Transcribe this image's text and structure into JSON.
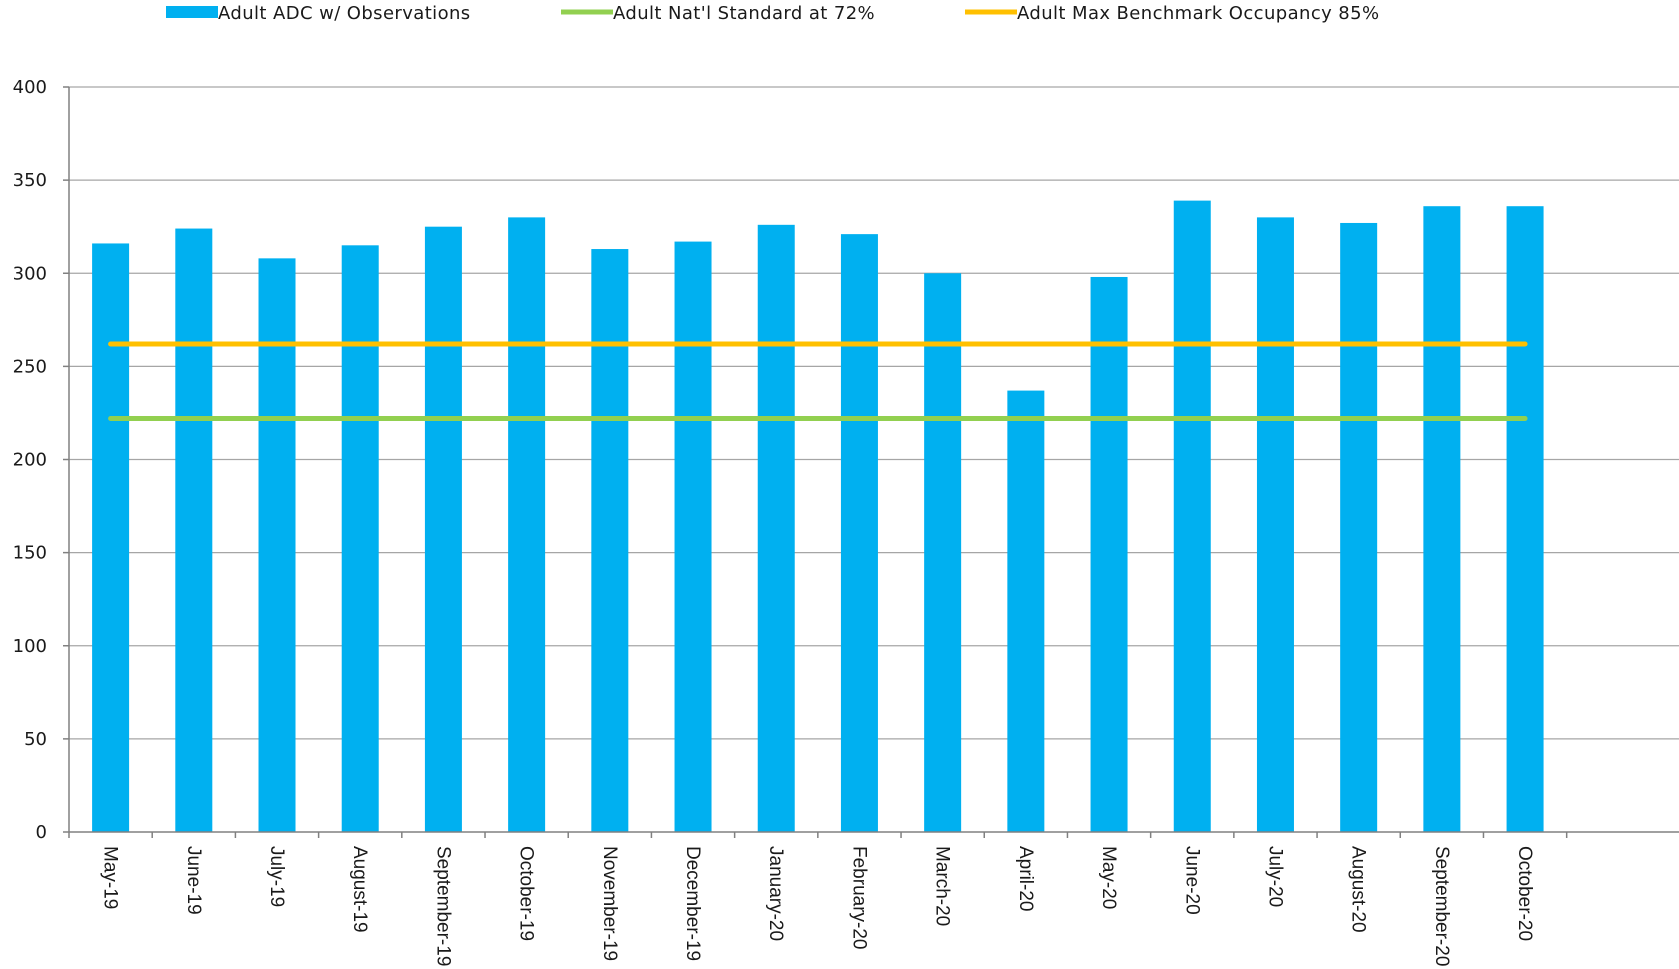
{
  "chart_data": {
    "type": "bar",
    "categories": [
      "May-19",
      "June-19",
      "July-19",
      "August-19",
      "September-19",
      "October-19",
      "November-19",
      "December-19",
      "January-20",
      "February-20",
      "March-20",
      "April-20",
      "May-20",
      "June-20",
      "July-20",
      "August-20",
      "September-20",
      "October-20"
    ],
    "series": [
      {
        "name": "Adult ADC w/ Observations",
        "type": "bar",
        "color": "#00b0f0",
        "values": [
          316,
          324,
          308,
          315,
          325,
          330,
          313,
          317,
          326,
          321,
          300,
          237,
          298,
          339,
          330,
          327,
          336,
          336
        ]
      },
      {
        "name": "Adult Nat'l Standard at 72%",
        "type": "line",
        "color": "#92d050",
        "values": [
          222,
          222,
          222,
          222,
          222,
          222,
          222,
          222,
          222,
          222,
          222,
          222,
          222,
          222,
          222,
          222,
          222,
          222
        ]
      },
      {
        "name": "Adult Max Benchmark Occupancy 85%",
        "type": "line",
        "color": "#ffc000",
        "values": [
          262,
          262,
          262,
          262,
          262,
          262,
          262,
          262,
          262,
          262,
          262,
          262,
          262,
          262,
          262,
          262,
          262,
          262
        ]
      }
    ],
    "ylim": [
      0,
      400
    ],
    "yticks": [
      0,
      50,
      100,
      150,
      200,
      250,
      300,
      350,
      400
    ],
    "ytick_labels": [
      "0",
      "50",
      "100",
      "150",
      "200",
      "250",
      "300",
      "350",
      "400"
    ],
    "grid": true,
    "legend_position": "top",
    "gridline_color": "#a6a6a6",
    "axis_color": "#808080"
  }
}
